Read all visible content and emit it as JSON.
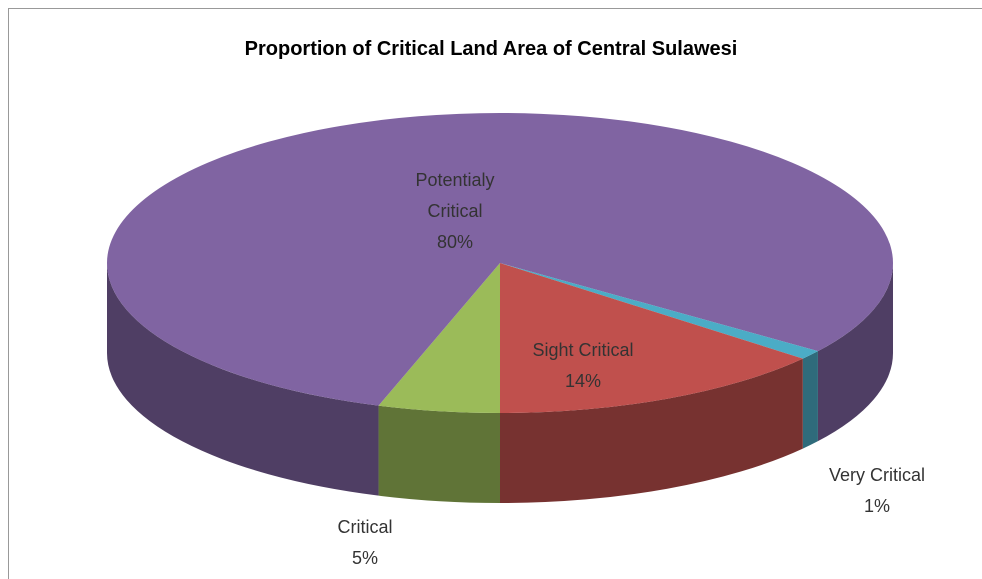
{
  "chart_data": {
    "type": "pie3d",
    "title": "Proportion of Critical Land Area of Central Sulawesi",
    "categories": [
      "Critical",
      "Potentialy Critical",
      "Very Critical",
      "Sight Critical"
    ],
    "values": [
      5,
      80,
      1,
      14
    ],
    "value_labels": [
      "5%",
      "80%",
      "1%",
      "14%"
    ],
    "colors": [
      "#9bbb59",
      "#8064a2",
      "#4bacc6",
      "#c0504d"
    ]
  }
}
